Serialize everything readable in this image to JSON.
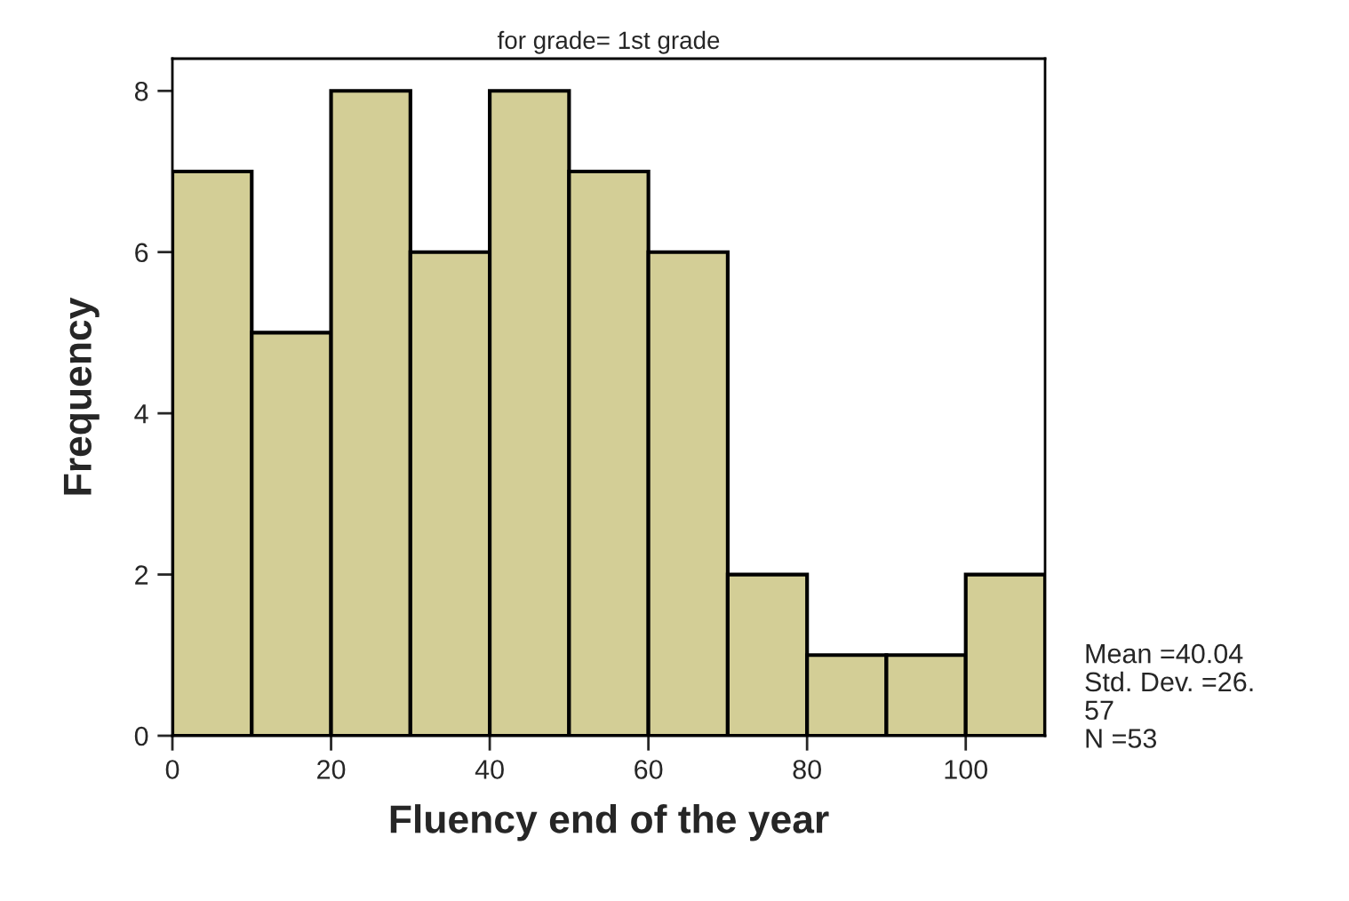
{
  "chart_data": {
    "type": "histogram",
    "title": "for grade= 1st grade",
    "xlabel": "Fluency end of the year",
    "ylabel": "Frequency",
    "bins": [
      0,
      10,
      20,
      30,
      40,
      50,
      60,
      70,
      80,
      90,
      100,
      110
    ],
    "values": [
      7,
      5,
      8,
      6,
      8,
      7,
      6,
      2,
      1,
      1,
      2
    ],
    "color": "#d3ce96",
    "xlim": [
      0,
      110
    ],
    "xticks": [
      0,
      20,
      40,
      60,
      80,
      100
    ],
    "ylim": [
      0,
      8.4
    ],
    "yticks": [
      0,
      2,
      4,
      6,
      8
    ],
    "grid": false,
    "annotations": [
      "Mean =40.04",
      "Std. Dev. =26.\n57",
      "N =53"
    ]
  }
}
